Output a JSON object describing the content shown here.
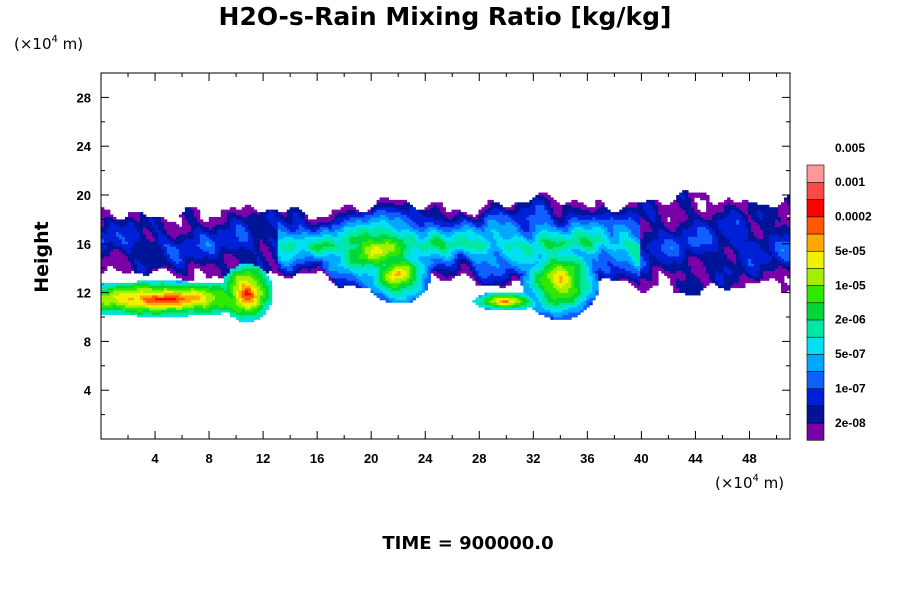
{
  "chart_data": {
    "type": "heatmap",
    "title": "H2O-s-Rain Mixing Ratio [kg/kg]",
    "ylabel": "Height",
    "xlabel": "",
    "x_unit": {
      "prefix": "(×10",
      "exp": "4",
      "suffix": " m)"
    },
    "y_unit": {
      "prefix": "(×10",
      "exp": "4",
      "suffix": " m)"
    },
    "xlim": [
      0,
      51
    ],
    "ylim": [
      0,
      30
    ],
    "x_ticks": [
      4,
      8,
      12,
      16,
      20,
      24,
      28,
      32,
      36,
      40,
      44,
      48
    ],
    "y_ticks": [
      4,
      8,
      12,
      16,
      20,
      24,
      28
    ],
    "footer": "TIME = 900000.0",
    "colorbar": {
      "colors": [
        "#7a00a8",
        "#00149a",
        "#0020d8",
        "#1060ff",
        "#00a8ff",
        "#00e0f0",
        "#00e8a0",
        "#00d838",
        "#30e800",
        "#a0f000",
        "#f0f000",
        "#ffa800",
        "#ff5800",
        "#ff0000",
        "#ff4848",
        "#ff9898"
      ],
      "labels": [
        "2e-08",
        "1e-07",
        "5e-07",
        "2e-06",
        "1e-05",
        "5e-05",
        "0.0002",
        "0.001",
        "0.005"
      ]
    },
    "field": {
      "description_levels": "0=none, 1..16 = colorbar level index",
      "band": {
        "x_from": 0,
        "x_to": 51,
        "bottom_y": [
          13.5,
          12.2
        ],
        "top_y": [
          18.5,
          19.8
        ]
      },
      "cores": [
        {
          "x": 4.5,
          "y": 11.5,
          "w": 5.0,
          "h": 0.9,
          "level": 14
        },
        {
          "x": 10.8,
          "y": 12.0,
          "w": 1.2,
          "h": 1.5,
          "level": 14
        },
        {
          "x": 20.5,
          "y": 15.5,
          "w": 3.0,
          "h": 2.0,
          "level": 11
        },
        {
          "x": 22.0,
          "y": 13.5,
          "w": 1.5,
          "h": 1.5,
          "level": 12
        },
        {
          "x": 34.0,
          "y": 13.0,
          "w": 1.8,
          "h": 2.0,
          "level": 12
        },
        {
          "x": 30.0,
          "y": 11.3,
          "w": 1.5,
          "h": 0.5,
          "level": 13
        }
      ]
    }
  }
}
